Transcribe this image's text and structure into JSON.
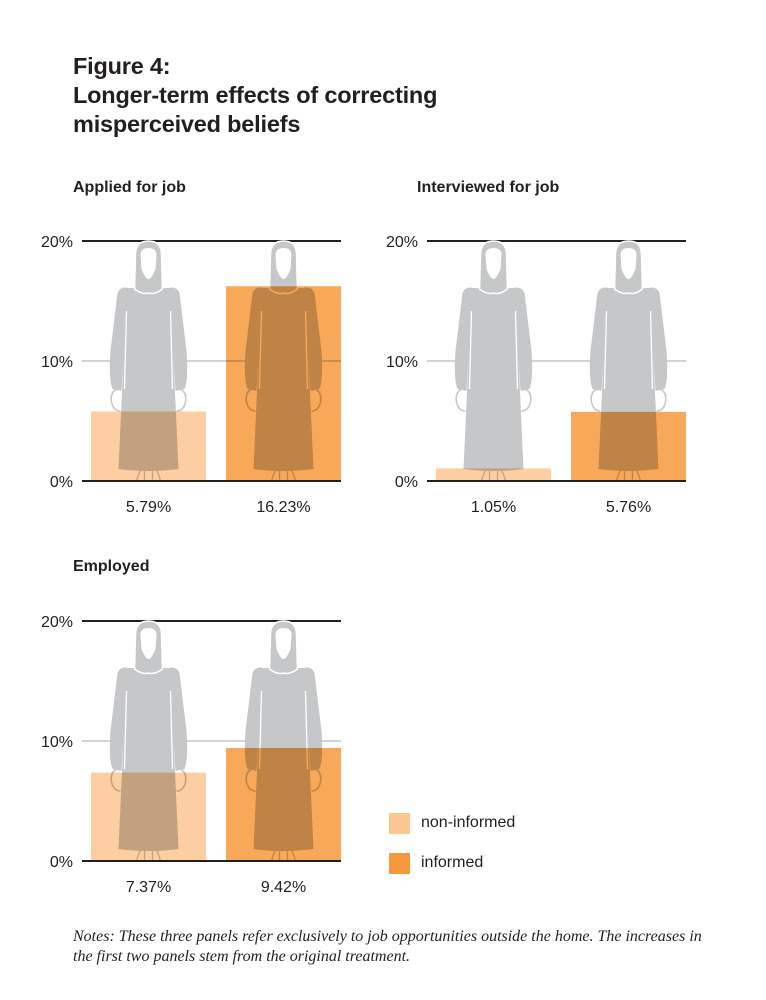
{
  "figure": {
    "title_line1": "Figure 4:",
    "title_line2": "Longer-term effects of correcting",
    "title_line3": "misperceived beliefs"
  },
  "colors": {
    "non_informed": "#fcc690",
    "informed": "#f6993c",
    "silhouette": "#c6c7c9",
    "axis": "#231f20",
    "gridline": "#a7a9ac"
  },
  "legend": {
    "items": [
      {
        "label": "non-informed",
        "color": "#fcc690"
      },
      {
        "label": "informed",
        "color": "#f6993c"
      }
    ]
  },
  "notes": "Notes: These three panels refer exclusively to job opportunities outside the home. The increases in the first two panels stem from the original treatment.",
  "chart_data": [
    {
      "type": "bar",
      "title": "Applied for job",
      "categories": [
        "non-informed",
        "informed"
      ],
      "values": [
        5.79,
        16.23
      ],
      "value_labels": [
        "5.79%",
        "16.23%"
      ],
      "ylim": [
        0,
        20
      ],
      "yticks": [
        "0%",
        "10%",
        "20%"
      ],
      "ytick_values": [
        0,
        10,
        20
      ],
      "grid": true,
      "xlabel": "",
      "ylabel": ""
    },
    {
      "type": "bar",
      "title": "Interviewed for job",
      "categories": [
        "non-informed",
        "informed"
      ],
      "values": [
        1.05,
        5.76
      ],
      "value_labels": [
        "1.05%",
        "5.76%"
      ],
      "ylim": [
        0,
        20
      ],
      "yticks": [
        "0%",
        "10%",
        "20%"
      ],
      "ytick_values": [
        0,
        10,
        20
      ],
      "grid": true,
      "xlabel": "",
      "ylabel": ""
    },
    {
      "type": "bar",
      "title": "Employed",
      "categories": [
        "non-informed",
        "informed"
      ],
      "values": [
        7.37,
        9.42
      ],
      "value_labels": [
        "7.37%",
        "9.42%"
      ],
      "ylim": [
        0,
        20
      ],
      "yticks": [
        "0%",
        "10%",
        "20%"
      ],
      "ytick_values": [
        0,
        10,
        20
      ],
      "grid": true,
      "xlabel": "",
      "ylabel": "",
      "legend_position": "bottom-right"
    }
  ]
}
